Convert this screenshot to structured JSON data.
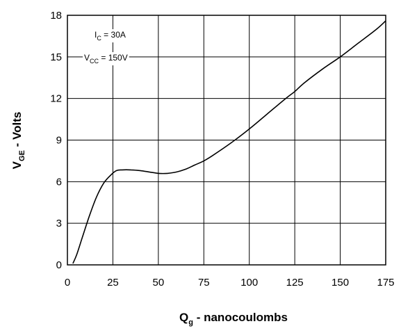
{
  "chart_data": {
    "type": "line",
    "xlabel_main": "Q",
    "xlabel_sub": "g",
    "xlabel_rest": " - nanocoulombs",
    "ylabel_main": "V",
    "ylabel_sub": "GE",
    "ylabel_rest": " - Volts",
    "xlim": [
      0,
      175
    ],
    "ylim": [
      0,
      18
    ],
    "xticks": [
      0,
      25,
      50,
      75,
      100,
      125,
      150,
      175
    ],
    "yticks": [
      0,
      3,
      6,
      9,
      12,
      15,
      18
    ],
    "grid": true,
    "annotations": [
      {
        "main": "I",
        "sub": "C",
        "rest": " = 30A"
      },
      {
        "main": "V",
        "sub": "CC",
        "rest": " = 150V"
      }
    ],
    "series": [
      {
        "x": [
          3,
          5,
          8,
          12,
          16,
          20,
          24,
          27,
          30,
          35,
          40,
          45,
          50,
          55,
          60,
          65,
          70,
          75,
          80,
          90,
          100,
          110,
          120,
          125,
          130,
          140,
          150,
          160,
          170,
          175
        ],
        "values": [
          0.1,
          0.7,
          1.9,
          3.5,
          4.9,
          5.9,
          6.5,
          6.8,
          6.85,
          6.85,
          6.8,
          6.7,
          6.6,
          6.6,
          6.7,
          6.9,
          7.2,
          7.5,
          7.9,
          8.8,
          9.8,
          10.9,
          12.0,
          12.5,
          13.1,
          14.1,
          15.0,
          16.0,
          17.0,
          17.6
        ]
      }
    ]
  }
}
